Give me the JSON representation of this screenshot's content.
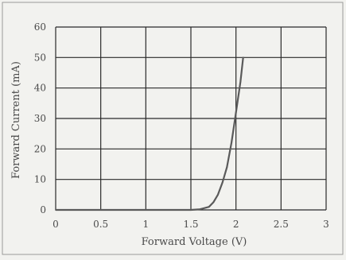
{
  "chart_data": {
    "type": "line",
    "title": "",
    "xlabel": "Forward Voltage (V)",
    "ylabel": "Forward Current (mA)",
    "xlim": [
      0,
      3
    ],
    "ylim": [
      0,
      60
    ],
    "x_ticks": [
      0,
      0.5,
      1,
      1.5,
      2,
      2.5,
      3
    ],
    "x_tick_labels": [
      "0",
      "0.5",
      "1",
      "1.5",
      "2",
      "2.5",
      "3"
    ],
    "y_ticks": [
      0,
      10,
      20,
      30,
      40,
      50,
      60
    ],
    "y_tick_labels": [
      "0",
      "10",
      "20",
      "30",
      "40",
      "50",
      "60"
    ],
    "grid": true,
    "legend": "none",
    "colors": {
      "line": "#5a5a5a",
      "grid": "#2a2a2a",
      "background": "#f2f2ef",
      "frame": "#9a9a9a"
    },
    "series": [
      {
        "x": [
          0,
          1.0,
          1.5,
          1.6,
          1.7,
          1.75,
          1.8,
          1.85,
          1.9,
          1.95,
          2.0,
          2.05,
          2.08
        ],
        "y": [
          0,
          0,
          0,
          0.2,
          1,
          2.5,
          5,
          9,
          14,
          22,
          32,
          42,
          50
        ]
      }
    ]
  }
}
